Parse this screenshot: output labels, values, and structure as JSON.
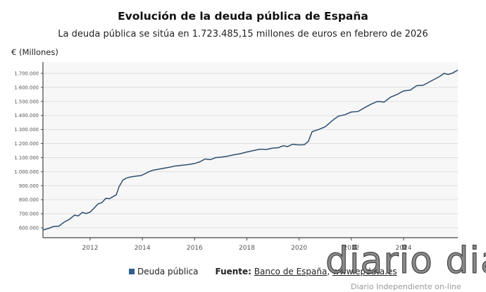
{
  "chart_data": {
    "type": "line",
    "title": "Evolución de la deuda pública de España",
    "subtitle": "La deuda pública se sitúa en 1.723.485,15 millones de euros en febrero de 2026",
    "ylabel": "€ (Millones)",
    "xlabel": "",
    "ylim": [
      530000,
      1760000
    ],
    "xlim": [
      2010.2,
      2026.08
    ],
    "grid": true,
    "legend_placement": "bottom",
    "x_ticks": [
      "2012",
      "2014",
      "2016",
      "2018",
      "2020",
      "2022",
      "2024"
    ],
    "y_ticks": [
      "600.000",
      "700.000",
      "800.000",
      "900.000",
      "1.000.000",
      "1.100.000",
      "1.200.000",
      "1.300.000",
      "1.400.000",
      "1.500.000",
      "1.600.000",
      "1.700.000"
    ],
    "series": [
      {
        "name": "Deuda pública",
        "color": "#2f4f6f",
        "x": [
          2010.2,
          2010.4,
          2010.6,
          2010.8,
          2011.0,
          2011.2,
          2011.4,
          2011.55,
          2011.7,
          2011.85,
          2012.0,
          2012.15,
          2012.3,
          2012.45,
          2012.6,
          2012.75,
          2012.9,
          2013.0,
          2013.1,
          2013.25,
          2013.4,
          2013.55,
          2013.75,
          2013.95,
          2014.1,
          2014.25,
          2014.4,
          2014.55,
          2014.75,
          2015.0,
          2015.25,
          2015.5,
          2015.75,
          2016.0,
          2016.2,
          2016.4,
          2016.6,
          2016.8,
          2017.0,
          2017.25,
          2017.5,
          2017.75,
          2018.0,
          2018.25,
          2018.5,
          2018.75,
          2019.0,
          2019.2,
          2019.4,
          2019.55,
          2019.75,
          2020.0,
          2020.2,
          2020.35,
          2020.5,
          2020.75,
          2021.0,
          2021.25,
          2021.5,
          2021.75,
          2022.0,
          2022.25,
          2022.5,
          2022.75,
          2023.0,
          2023.25,
          2023.5,
          2023.75,
          2024.0,
          2024.25,
          2024.5,
          2024.75,
          2025.0,
          2025.2,
          2025.4,
          2025.55,
          2025.7,
          2025.85,
          2026.08
        ],
        "values": [
          585000,
          595000,
          610000,
          612000,
          640000,
          660000,
          690000,
          685000,
          710000,
          702000,
          712000,
          740000,
          770000,
          780000,
          810000,
          808000,
          825000,
          835000,
          890000,
          940000,
          955000,
          962000,
          968000,
          972000,
          985000,
          1000000,
          1010000,
          1015000,
          1022000,
          1030000,
          1040000,
          1045000,
          1050000,
          1058000,
          1070000,
          1090000,
          1085000,
          1100000,
          1103000,
          1110000,
          1120000,
          1128000,
          1140000,
          1150000,
          1160000,
          1158000,
          1168000,
          1170000,
          1185000,
          1178000,
          1195000,
          1190000,
          1192000,
          1215000,
          1285000,
          1300000,
          1320000,
          1360000,
          1395000,
          1405000,
          1425000,
          1428000,
          1455000,
          1480000,
          1500000,
          1495000,
          1530000,
          1550000,
          1575000,
          1580000,
          1612000,
          1615000,
          1640000,
          1660000,
          1680000,
          1700000,
          1692000,
          1700000,
          1723485.15
        ]
      }
    ]
  },
  "legend": {
    "label": "Deuda pública",
    "color": "#2f5f8a"
  },
  "source": {
    "label": "Fuente:",
    "link1": "Banco de España",
    "sep": ",",
    "link2": "www.epdata.es"
  },
  "watermark": {
    "logo": "diario dia",
    "tagline": "Diario Independiente on-line"
  }
}
